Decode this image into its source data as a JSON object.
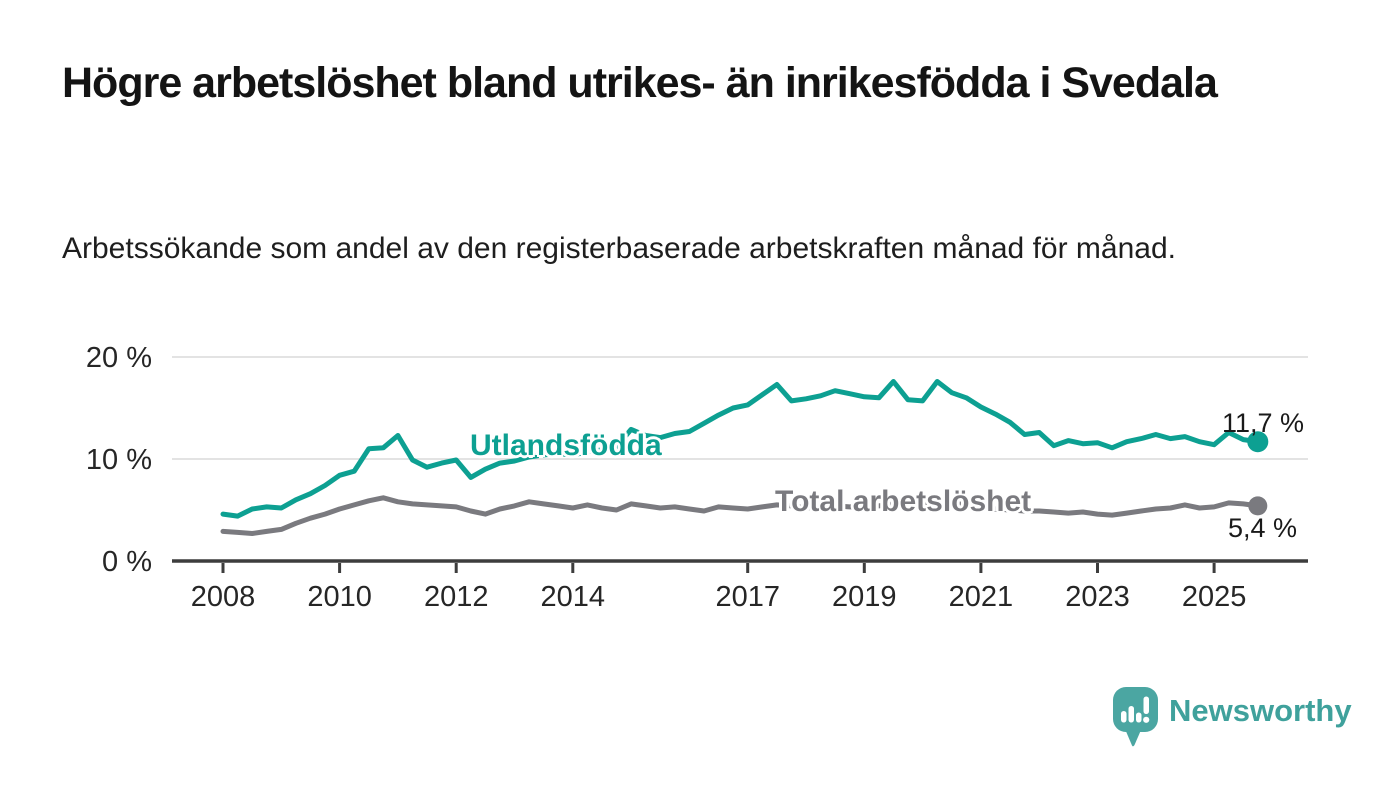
{
  "chart_data": {
    "type": "line",
    "title": "Högre arbetslöshet bland utrikes- än inrikesfödda i Svedala",
    "subtitle": "Arbetssökande som andel av den registerbaserade arbetskraften månad för månad.",
    "x_label": "",
    "y_label": "",
    "ylim": [
      0,
      20
    ],
    "xlim": [
      2007.1,
      2026.6
    ],
    "grid": "horizontal-only",
    "legend": "inline-labels",
    "grid_color": "#dadada",
    "axis_color": "#3d3d3d",
    "text_color": "#262626",
    "y_ticks": [
      {
        "value": 0,
        "label": "0 %"
      },
      {
        "value": 10,
        "label": "10 %"
      },
      {
        "value": 20,
        "label": "20 %"
      }
    ],
    "x_ticks": [
      {
        "value": 2008,
        "label": "2008"
      },
      {
        "value": 2010,
        "label": "2010"
      },
      {
        "value": 2012,
        "label": "2012"
      },
      {
        "value": 2014,
        "label": "2014"
      },
      {
        "value": 2017,
        "label": "2017"
      },
      {
        "value": 2019,
        "label": "2019"
      },
      {
        "value": 2021,
        "label": "2021"
      },
      {
        "value": 2023,
        "label": "2023"
      },
      {
        "value": 2025,
        "label": "2025"
      }
    ],
    "x": [
      2008,
      2008.25,
      2008.5,
      2008.75,
      2009,
      2009.25,
      2009.5,
      2009.75,
      2010,
      2010.25,
      2010.5,
      2010.75,
      2011,
      2011.25,
      2011.5,
      2011.75,
      2012,
      2012.25,
      2012.5,
      2012.75,
      2013,
      2013.25,
      2013.5,
      2013.75,
      2014,
      2014.25,
      2014.5,
      2014.75,
      2015,
      2015.25,
      2015.5,
      2015.75,
      2016,
      2016.25,
      2016.5,
      2016.75,
      2017,
      2017.25,
      2017.5,
      2017.75,
      2018,
      2018.25,
      2018.5,
      2018.75,
      2019,
      2019.25,
      2019.5,
      2019.75,
      2020,
      2020.25,
      2020.5,
      2020.75,
      2021,
      2021.25,
      2021.5,
      2021.75,
      2022,
      2022.25,
      2022.5,
      2022.75,
      2023,
      2023.25,
      2023.5,
      2023.75,
      2024,
      2024.25,
      2024.5,
      2024.75,
      2025,
      2025.25,
      2025.5,
      2025.75
    ],
    "series": [
      {
        "name": "Utlandsfödda",
        "color": "#0da092",
        "end_label": "11,7 %",
        "end_value": 11.7,
        "values": [
          4.6,
          4.4,
          5.1,
          5.3,
          5.2,
          6.0,
          6.6,
          7.4,
          8.4,
          8.8,
          11.0,
          11.1,
          12.3,
          9.9,
          9.2,
          9.6,
          9.9,
          8.2,
          9.0,
          9.6,
          9.8,
          10.2,
          10.4,
          10.5,
          10.4,
          10.7,
          10.9,
          11.2,
          12.9,
          12.3,
          12.1,
          12.5,
          12.7,
          13.5,
          14.3,
          15.0,
          15.3,
          16.3,
          17.3,
          15.7,
          15.9,
          16.2,
          16.7,
          16.4,
          16.1,
          16.0,
          17.6,
          15.8,
          15.7,
          17.6,
          16.5,
          16.0,
          15.1,
          14.4,
          13.6,
          12.4,
          12.6,
          11.3,
          11.8,
          11.5,
          11.6,
          11.1,
          11.7,
          12.0,
          12.4,
          12.0,
          12.2,
          11.7,
          11.4,
          12.6,
          11.9,
          11.7
        ]
      },
      {
        "name": "Total arbetslöshet",
        "color": "#7a7a7f",
        "end_label": "5,4 %",
        "end_value": 5.4,
        "values": [
          2.9,
          2.8,
          2.7,
          2.9,
          3.1,
          3.7,
          4.2,
          4.6,
          5.1,
          5.5,
          5.9,
          6.2,
          5.8,
          5.6,
          5.5,
          5.4,
          5.3,
          4.9,
          4.6,
          5.1,
          5.4,
          5.8,
          5.6,
          5.4,
          5.2,
          5.5,
          5.2,
          5.0,
          5.6,
          5.4,
          5.2,
          5.3,
          5.1,
          4.9,
          5.3,
          5.2,
          5.1,
          5.3,
          5.5,
          5.4,
          5.2,
          5.3,
          5.4,
          5.3,
          5.3,
          5.4,
          5.6,
          5.4,
          5.6,
          5.9,
          5.7,
          5.5,
          5.3,
          5.1,
          5.0,
          4.9,
          4.9,
          4.8,
          4.7,
          4.8,
          4.6,
          4.5,
          4.7,
          4.9,
          5.1,
          5.2,
          5.5,
          5.2,
          5.3,
          5.7,
          5.6,
          5.4
        ]
      }
    ]
  },
  "footer": {
    "brand": "Newsworthy",
    "brand_color": "#3fa19c",
    "logo_icon": "newsworthy-speech-bubble-bar-chart-icon"
  }
}
